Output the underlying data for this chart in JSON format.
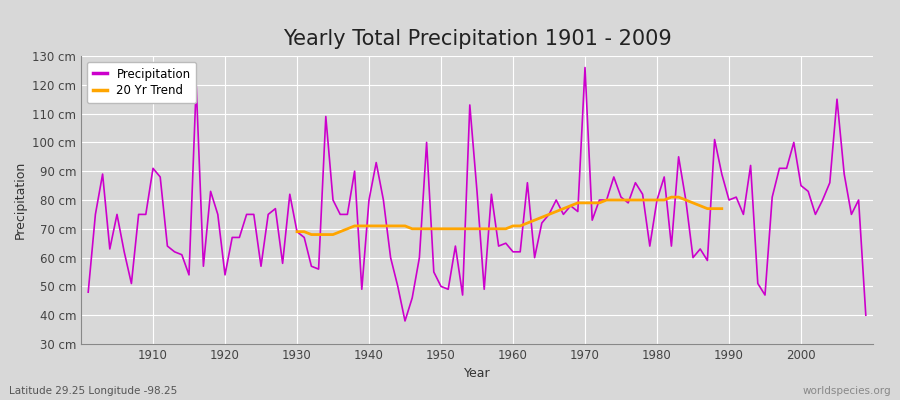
{
  "title": "Yearly Total Precipitation 1901 - 2009",
  "xlabel": "Year",
  "ylabel": "Precipitation",
  "subtitle": "Latitude 29.25 Longitude -98.25",
  "watermark": "worldspecies.org",
  "ylim": [
    30,
    130
  ],
  "yticks": [
    30,
    40,
    50,
    60,
    70,
    80,
    90,
    100,
    110,
    120,
    130
  ],
  "ytick_labels": [
    "30 cm",
    "40 cm",
    "50 cm",
    "60 cm",
    "70 cm",
    "80 cm",
    "90 cm",
    "100 cm",
    "110 cm",
    "120 cm",
    "130 cm"
  ],
  "years": [
    1901,
    1902,
    1903,
    1904,
    1905,
    1906,
    1907,
    1908,
    1909,
    1910,
    1911,
    1912,
    1913,
    1914,
    1915,
    1916,
    1917,
    1918,
    1919,
    1920,
    1921,
    1922,
    1923,
    1924,
    1925,
    1926,
    1927,
    1928,
    1929,
    1930,
    1931,
    1932,
    1933,
    1934,
    1935,
    1936,
    1937,
    1938,
    1939,
    1940,
    1941,
    1942,
    1943,
    1944,
    1945,
    1946,
    1947,
    1948,
    1949,
    1950,
    1951,
    1952,
    1953,
    1954,
    1955,
    1956,
    1957,
    1958,
    1959,
    1960,
    1961,
    1962,
    1963,
    1964,
    1965,
    1966,
    1967,
    1968,
    1969,
    1970,
    1971,
    1972,
    1973,
    1974,
    1975,
    1976,
    1977,
    1978,
    1979,
    1980,
    1981,
    1982,
    1983,
    1984,
    1985,
    1986,
    1987,
    1988,
    1989,
    1990,
    1991,
    1992,
    1993,
    1994,
    1995,
    1996,
    1997,
    1998,
    1999,
    2000,
    2001,
    2002,
    2003,
    2004,
    2005,
    2006,
    2007,
    2008,
    2009
  ],
  "precip": [
    48,
    75,
    89,
    63,
    75,
    62,
    51,
    75,
    75,
    91,
    88,
    64,
    62,
    61,
    54,
    120,
    57,
    83,
    75,
    54,
    67,
    67,
    75,
    75,
    57,
    75,
    77,
    58,
    82,
    69,
    67,
    57,
    56,
    109,
    80,
    75,
    75,
    90,
    49,
    80,
    93,
    80,
    60,
    50,
    38,
    46,
    60,
    100,
    55,
    50,
    49,
    64,
    47,
    113,
    83,
    49,
    82,
    64,
    65,
    62,
    62,
    86,
    60,
    72,
    75,
    80,
    75,
    78,
    76,
    126,
    73,
    80,
    80,
    88,
    81,
    79,
    86,
    82,
    64,
    80,
    88,
    64,
    95,
    80,
    60,
    63,
    59,
    101,
    89,
    80,
    81,
    75,
    92,
    51,
    47,
    81,
    91,
    91,
    100,
    85,
    83,
    75,
    80,
    86,
    115,
    89,
    75,
    80,
    40
  ],
  "trend_years": [
    1930,
    1931,
    1932,
    1933,
    1934,
    1935,
    1936,
    1937,
    1938,
    1939,
    1940,
    1941,
    1942,
    1943,
    1944,
    1945,
    1946,
    1947,
    1948,
    1949,
    1950,
    1951,
    1952,
    1953,
    1954,
    1955,
    1956,
    1957,
    1958,
    1959,
    1960,
    1961,
    1962,
    1963,
    1964,
    1965,
    1966,
    1967,
    1968,
    1969,
    1970,
    1971,
    1972,
    1973,
    1974,
    1975,
    1976,
    1977,
    1978,
    1979,
    1980,
    1981,
    1982,
    1983,
    1984,
    1985,
    1986,
    1987,
    1988,
    1989
  ],
  "trend_values": [
    69,
    69,
    68,
    68,
    68,
    68,
    69,
    70,
    71,
    71,
    71,
    71,
    71,
    71,
    71,
    71,
    70,
    70,
    70,
    70,
    70,
    70,
    70,
    70,
    70,
    70,
    70,
    70,
    70,
    70,
    71,
    71,
    72,
    73,
    74,
    75,
    76,
    77,
    78,
    79,
    79,
    79,
    79,
    80,
    80,
    80,
    80,
    80,
    80,
    80,
    80,
    80,
    81,
    81,
    80,
    79,
    78,
    77,
    77,
    77
  ],
  "precip_color": "#CC00CC",
  "trend_color": "#FFA500",
  "bg_color": "#D8D8D8",
  "plot_bg_color": "#D8D8D8",
  "grid_color": "#FFFFFF",
  "title_fontsize": 15,
  "axis_label_fontsize": 9,
  "tick_fontsize": 8.5,
  "legend_fontsize": 8.5,
  "subtitle_fontsize": 7.5,
  "watermark_fontsize": 7.5
}
